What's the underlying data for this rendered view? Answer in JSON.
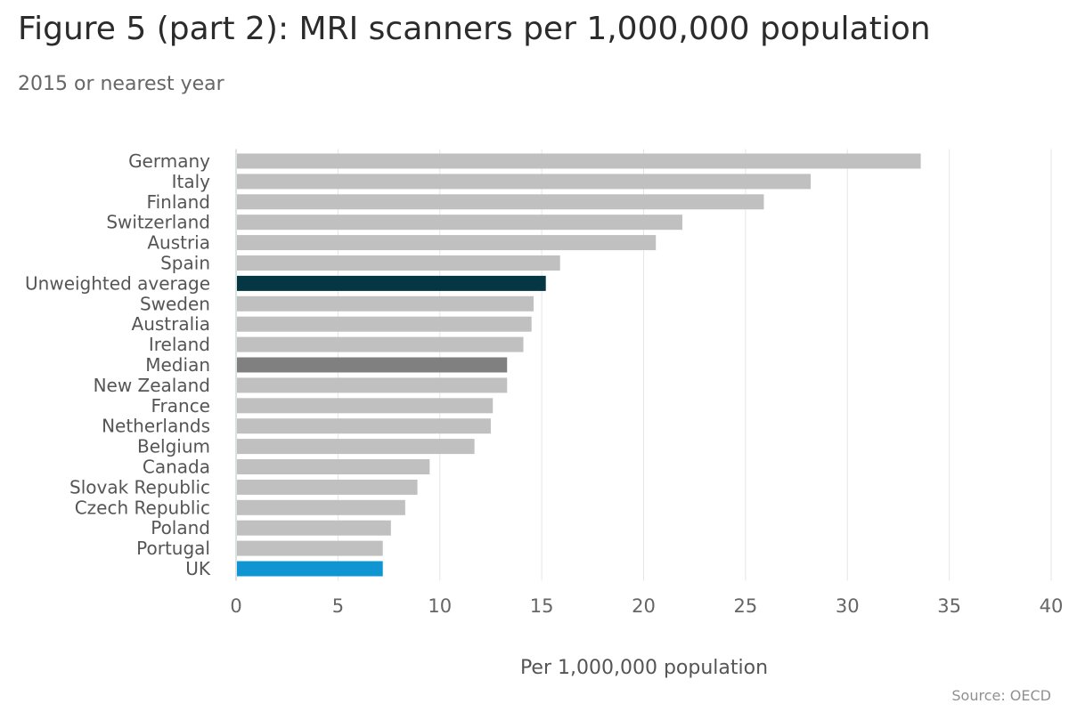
{
  "header": {
    "title": "Figure 5 (part 2): MRI scanners per 1,000,000 population",
    "subtitle": "2015 or nearest year"
  },
  "footer": {
    "source": "Source: OECD"
  },
  "colors": {
    "default_bar": "#c0c0c0",
    "unweighted_average": "#053644",
    "median": "#808080",
    "uk": "#0f95d2",
    "gridline": "#e6e6e6",
    "tick_label": "#666666",
    "category_label": "#555555"
  },
  "chart_data": {
    "type": "bar",
    "orientation": "horizontal",
    "title": "Figure 5 (part 2): MRI scanners per 1,000,000 population",
    "subtitle": "2015 or nearest year",
    "xlabel": "Per 1,000,000 population",
    "ylabel": "",
    "xlim": [
      0,
      40
    ],
    "xticks": [
      0,
      5,
      10,
      15,
      20,
      25,
      30,
      35,
      40
    ],
    "grid": true,
    "categories": [
      "Germany",
      "Italy",
      "Finland",
      "Switzerland",
      "Austria",
      "Spain",
      "Unweighted average",
      "Sweden",
      "Australia",
      "Ireland",
      "Median",
      "New Zealand",
      "France",
      "Netherlands",
      "Belgium",
      "Canada",
      "Slovak Republic",
      "Czech Republic",
      "Poland",
      "Portugal",
      "UK"
    ],
    "values": [
      33.6,
      28.2,
      25.9,
      21.9,
      20.6,
      15.9,
      15.2,
      14.6,
      14.5,
      14.1,
      13.3,
      13.3,
      12.6,
      12.5,
      11.7,
      9.5,
      8.9,
      8.3,
      7.6,
      7.2,
      7.2
    ],
    "highlight": {
      "Unweighted average": "#053644",
      "Median": "#808080",
      "UK": "#0f95d2"
    }
  }
}
